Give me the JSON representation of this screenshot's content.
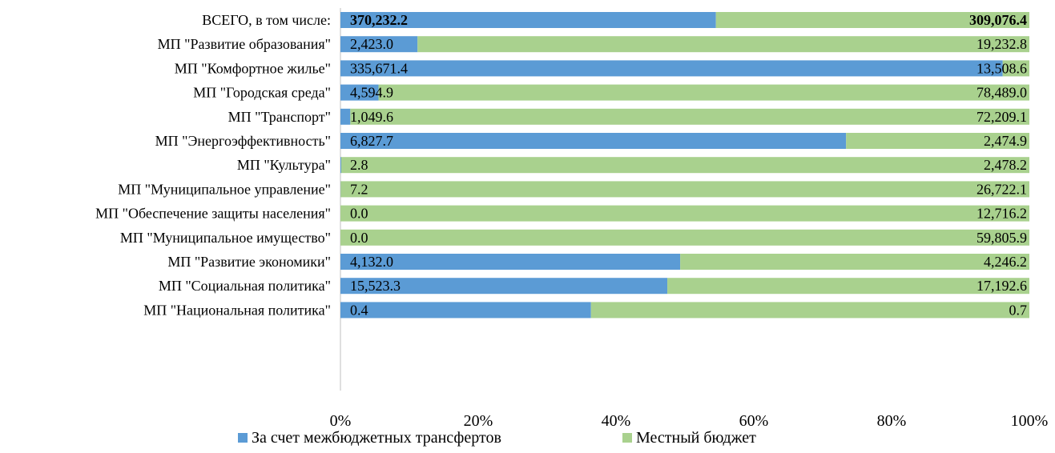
{
  "chart_data": {
    "type": "bar",
    "orientation": "horizontal",
    "stacked": "percent",
    "title": "",
    "categories": [
      "ВСЕГО, в том числе:",
      "МП \"Развитие образования\"",
      "МП \"Комфортное жилье\"",
      "МП \"Городская среда\"",
      "МП \"Транспорт\"",
      "МП \"Энергоэффективность\"",
      "МП \"Культура\"",
      "МП \"Муниципальное управление\"",
      "МП \"Обеспечение защиты населения\"",
      "МП \"Муниципальное имущество\"",
      "МП \"Развитие экономики\"",
      "МП \"Социальная политика\"",
      "МП \"Национальная политика\""
    ],
    "series": [
      {
        "name": "За счет межбюджетных трансфертов",
        "color": "#5B9BD5",
        "values": [
          370232.2,
          2423.0,
          335671.4,
          4594.9,
          1049.6,
          6827.7,
          2.8,
          7.2,
          0.0,
          0.0,
          4132.0,
          15523.3,
          0.4
        ],
        "labels": [
          "370,232.2",
          "2,423.0",
          "335,671.4",
          "4,594.9",
          "1,049.6",
          "6,827.7",
          "2.8",
          "7.2",
          "0.0",
          "0.0",
          "4,132.0",
          "15,523.3",
          "0.4"
        ]
      },
      {
        "name": "Местный бюджет",
        "color": "#A9D18E",
        "values": [
          309076.4,
          19232.8,
          13508.6,
          78489.0,
          72209.1,
          2474.9,
          2478.2,
          26722.1,
          12716.2,
          59805.9,
          4246.2,
          17192.6,
          0.7
        ],
        "labels": [
          "309,076.4",
          "19,232.8",
          "13,508.6",
          "78,489.0",
          "72,209.1",
          "2,474.9",
          "2,478.2",
          "26,722.1",
          "12,716.2",
          "59,805.9",
          "4,246.2",
          "17,192.6",
          "0.7"
        ]
      }
    ],
    "bold_rows": [
      0
    ],
    "xaxis": {
      "ticks": [
        "0%",
        "20%",
        "40%",
        "60%",
        "80%",
        "100%"
      ],
      "min": 0,
      "max": 100
    },
    "legend": {
      "position": "bottom"
    },
    "grid": false
  }
}
